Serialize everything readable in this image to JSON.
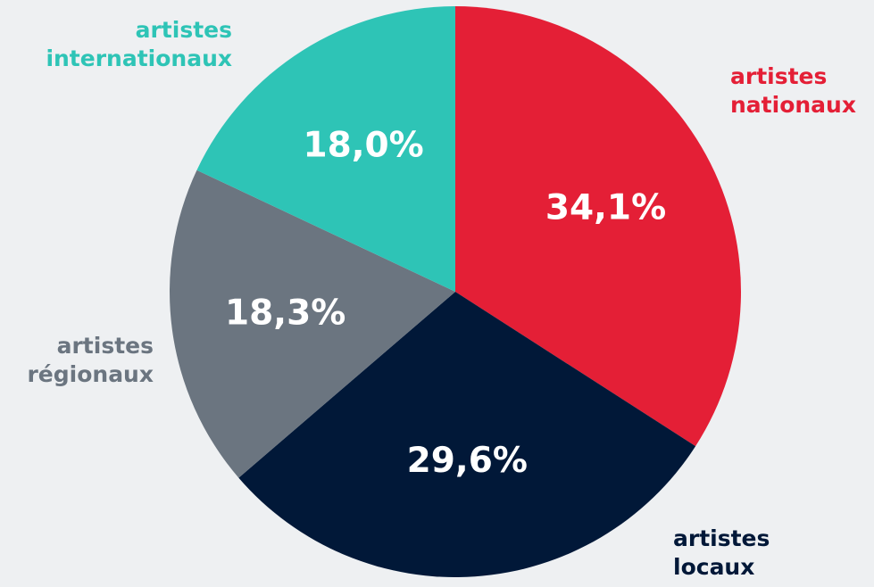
{
  "chart_data": {
    "type": "pie",
    "slices": [
      {
        "line1": "artistes",
        "line2": "nationaux",
        "value": 34.1,
        "value_label": "34,1%",
        "color": "#e41f36"
      },
      {
        "line1": "artistes",
        "line2": "locaux",
        "value": 29.6,
        "value_label": "29,6%",
        "color": "#011838"
      },
      {
        "line1": "artistes",
        "line2": "régionaux",
        "value": 18.3,
        "value_label": "18,3%",
        "color": "#6b7580"
      },
      {
        "line1": "artistes",
        "line2": "internationaux",
        "value": 18.0,
        "value_label": "18,0%",
        "color": "#2ec4b6"
      }
    ],
    "start_angle_deg": 0,
    "direction": "clockwise",
    "label_text_colors": [
      "#e41f36",
      "#011838",
      "#6b7580",
      "#2ec4b6"
    ]
  }
}
